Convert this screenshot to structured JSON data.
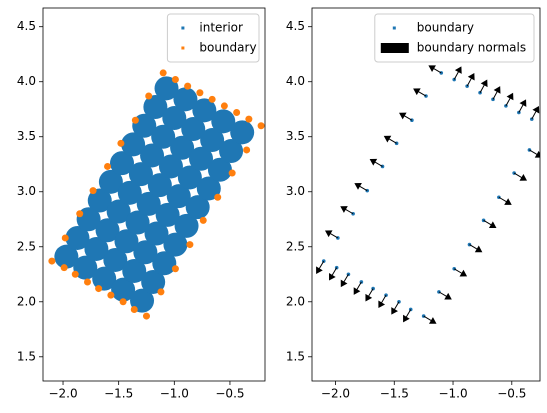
{
  "chart_data": [
    {
      "type": "scatter",
      "legend": "upper right",
      "xlim": [
        -2.18,
        -0.185
      ],
      "ylim": [
        1.28,
        4.67
      ],
      "xticks": [
        {
          "value": -2.0,
          "label": "−2.0"
        },
        {
          "value": -1.5,
          "label": "−1.5"
        },
        {
          "value": -1.0,
          "label": "−1.0"
        },
        {
          "value": -0.5,
          "label": "−0.5"
        }
      ],
      "yticks": [
        1.5,
        {
          "value": 2,
          "label": "2.0"
        },
        2.5,
        {
          "value": 3,
          "label": "3.0"
        },
        3.5,
        {
          "value": 4,
          "label": "4.0"
        },
        4.5
      ],
      "series": [
        {
          "name": "interior",
          "color": "#1f77b4",
          "x": [
            -1.97,
            -1.87,
            -1.77,
            -1.67,
            -1.57,
            -1.47,
            -1.37,
            -1.27,
            -1.17,
            -1.07,
            -1.8,
            -1.7,
            -1.6,
            -1.5,
            -1.4,
            -1.3,
            -1.2,
            -1.1,
            -1.0,
            -0.9,
            -1.63,
            -1.53,
            -1.43,
            -1.33,
            -1.23,
            -1.13,
            -1.03,
            -0.93,
            -0.83,
            -0.73,
            -1.46,
            -1.36,
            -1.26,
            -1.16,
            -1.06,
            -0.96,
            -0.86,
            -0.76,
            -0.66,
            -0.56,
            -1.29,
            -1.19,
            -1.09,
            -0.99,
            -0.89,
            -0.79,
            -0.69,
            -0.59,
            -0.49,
            -0.39
          ],
          "y": [
            2.41,
            2.58,
            2.75,
            2.92,
            3.09,
            3.26,
            3.43,
            3.6,
            3.77,
            3.94,
            2.31,
            2.48,
            2.65,
            2.82,
            2.99,
            3.16,
            3.33,
            3.5,
            3.67,
            3.84,
            2.21,
            2.38,
            2.55,
            2.72,
            2.89,
            3.06,
            3.23,
            3.4,
            3.57,
            3.74,
            2.11,
            2.28,
            2.45,
            2.62,
            2.79,
            2.96,
            3.13,
            3.3,
            3.47,
            3.64,
            2.01,
            2.18,
            2.35,
            2.52,
            2.69,
            2.86,
            3.03,
            3.2,
            3.37,
            3.54
          ]
        },
        {
          "name": "boundary",
          "color": "#ff7f0e",
          "x": [
            -2.1,
            -1.99,
            -1.89,
            -1.78,
            -1.68,
            -1.57,
            -1.46,
            -1.36,
            -1.25,
            -1.12,
            -0.99,
            -0.86,
            -0.74,
            -0.61,
            -0.48,
            -0.35,
            -0.22,
            -0.33,
            -0.44,
            -0.55,
            -0.66,
            -0.77,
            -0.88,
            -0.99,
            -1.1,
            -1.23,
            -1.35,
            -1.48,
            -1.6,
            -1.73,
            -1.85,
            -1.98
          ],
          "y": [
            2.37,
            2.31,
            2.25,
            2.18,
            2.12,
            2.06,
            2.0,
            1.93,
            1.87,
            2.09,
            2.3,
            2.52,
            2.74,
            2.95,
            3.17,
            3.38,
            3.6,
            3.66,
            3.72,
            3.78,
            3.84,
            3.9,
            3.96,
            4.02,
            4.08,
            3.87,
            3.65,
            3.44,
            3.23,
            3.01,
            2.8,
            2.58
          ]
        }
      ]
    },
    {
      "type": "scatter",
      "legend": "upper right",
      "xlim": [
        -2.2,
        -0.26
      ],
      "ylim": [
        1.28,
        4.67
      ],
      "xticks": [
        {
          "value": -2.0,
          "label": "−2.0"
        },
        {
          "value": -1.5,
          "label": "−1.5"
        },
        {
          "value": -1.0,
          "label": "−1.0"
        },
        {
          "value": -0.5,
          "label": "−0.5"
        }
      ],
      "yticks": [
        1.5,
        {
          "value": 2,
          "label": "2.0"
        },
        2.5,
        {
          "value": 3,
          "label": "3.0"
        },
        3.5,
        {
          "value": 4,
          "label": "4.0"
        },
        4.5
      ],
      "series": [
        {
          "name": "boundary",
          "color": "#1f77b4",
          "x": [
            -2.1,
            -1.99,
            -1.89,
            -1.78,
            -1.68,
            -1.57,
            -1.46,
            -1.36,
            -1.25,
            -1.12,
            -0.99,
            -0.86,
            -0.74,
            -0.61,
            -0.48,
            -0.35,
            -0.22,
            -0.33,
            -0.44,
            -0.55,
            -0.66,
            -0.77,
            -0.88,
            -0.99,
            -1.1,
            -1.23,
            -1.35,
            -1.48,
            -1.6,
            -1.73,
            -1.85,
            -1.98
          ],
          "y": [
            2.37,
            2.31,
            2.25,
            2.18,
            2.12,
            2.06,
            2.0,
            1.93,
            1.87,
            2.09,
            2.3,
            2.52,
            2.74,
            2.95,
            3.17,
            3.38,
            3.6,
            3.66,
            3.72,
            3.78,
            3.84,
            3.9,
            3.96,
            4.02,
            4.08,
            3.87,
            3.65,
            3.44,
            3.23,
            3.01,
            2.8,
            2.58
          ]
        },
        {
          "name": "boundary normals",
          "type": "quiver",
          "color": "#000000",
          "x": [
            -2.1,
            -1.99,
            -1.89,
            -1.78,
            -1.68,
            -1.57,
            -1.46,
            -1.36,
            -1.25,
            -1.12,
            -0.99,
            -0.86,
            -0.74,
            -0.61,
            -0.48,
            -0.35,
            -0.22,
            -0.33,
            -0.44,
            -0.55,
            -0.66,
            -0.77,
            -0.88,
            -0.99,
            -1.1,
            -1.23,
            -1.35,
            -1.48,
            -1.6,
            -1.73,
            -1.85,
            -1.98
          ],
          "y": [
            2.37,
            2.31,
            2.25,
            2.18,
            2.12,
            2.06,
            2.0,
            1.93,
            1.87,
            2.09,
            2.3,
            2.52,
            2.74,
            2.95,
            3.17,
            3.38,
            3.6,
            3.66,
            3.72,
            3.78,
            3.84,
            3.9,
            3.96,
            4.02,
            4.08,
            3.87,
            3.65,
            3.44,
            3.23,
            3.01,
            2.8,
            2.58
          ],
          "u": [
            -0.51,
            -0.51,
            -0.51,
            -0.51,
            -0.51,
            -0.51,
            -0.51,
            -0.51,
            0.86,
            0.86,
            0.86,
            0.86,
            0.86,
            0.86,
            0.86,
            0.86,
            0.48,
            0.48,
            0.48,
            0.48,
            0.48,
            0.48,
            0.48,
            0.48,
            -0.86,
            -0.86,
            -0.86,
            -0.86,
            -0.86,
            -0.86,
            -0.86,
            -0.86
          ],
          "v": [
            -0.86,
            -0.86,
            -0.86,
            -0.86,
            -0.86,
            -0.86,
            -0.86,
            -0.86,
            -0.51,
            -0.51,
            -0.51,
            -0.51,
            -0.51,
            -0.51,
            -0.51,
            -0.51,
            0.88,
            0.88,
            0.88,
            0.88,
            0.88,
            0.88,
            0.88,
            0.88,
            0.5,
            0.5,
            0.5,
            0.5,
            0.5,
            0.5,
            0.5,
            0.5
          ]
        }
      ]
    }
  ]
}
